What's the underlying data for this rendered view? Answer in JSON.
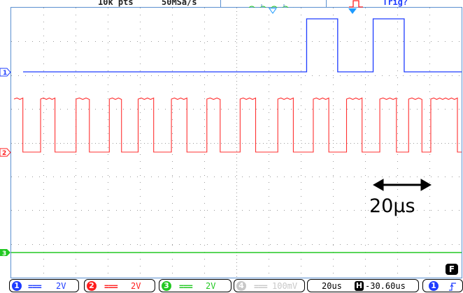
{
  "status": {
    "memory_depth": "10k pts",
    "sample_rate": "50MSa/s",
    "trigger_status": "Trig?"
  },
  "channels": [
    {
      "number": "1",
      "coupling": "===",
      "volts_per_div": "2V",
      "color": "#1e3cff",
      "enabled": true
    },
    {
      "number": "2",
      "coupling": "===",
      "volts_per_div": "2V",
      "color": "#ff1e1e",
      "enabled": true
    },
    {
      "number": "3",
      "coupling": "===",
      "volts_per_div": "2V",
      "color": "#22c822",
      "enabled": true
    },
    {
      "number": "4",
      "coupling": "===",
      "volts_per_div": "100mV",
      "color": "#c8c8c8",
      "enabled": false
    }
  ],
  "timebase": {
    "time_per_div": "20us",
    "horizontal_position_label": "H",
    "horizontal_position": "-30.60us"
  },
  "trigger": {
    "source": "1",
    "edge_icon": "rising-edge-icon"
  },
  "annotation": {
    "text": "20μs"
  },
  "function_key": "F",
  "colors": {
    "ch1": "#1e3cff",
    "ch2": "#ff1e1e",
    "ch3": "#22c822",
    "ch4": "#c8c8c8",
    "grid": "#9a9a9a",
    "frame": "#5a8fd0",
    "trigger_marker": "#1e9bff"
  },
  "waveforms": {
    "ch1_pulse_times_us": [
      [
        132,
        146
      ],
      [
        162,
        176
      ]
    ],
    "ch2_high_intervals_us": [
      [
        0,
        4
      ],
      [
        12,
        18.5
      ],
      [
        28,
        34
      ],
      [
        43,
        48.5
      ],
      [
        56,
        63
      ],
      [
        71,
        78
      ],
      [
        87,
        93
      ],
      [
        102,
        109
      ],
      [
        119,
        126
      ],
      [
        135,
        142
      ],
      [
        150,
        157
      ],
      [
        165,
        172.5
      ],
      [
        178,
        184
      ],
      [
        188,
        200
      ]
    ]
  }
}
